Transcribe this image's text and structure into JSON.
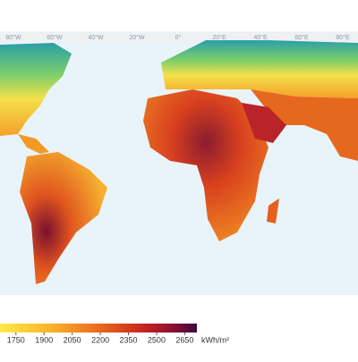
{
  "map": {
    "longitude_labels": [
      "80°W",
      "60°W",
      "40°W",
      "20°W",
      "0°",
      "20°E",
      "40°E",
      "60°E",
      "80°E"
    ]
  },
  "legend": {
    "ticks": [
      1750,
      1900,
      2050,
      2200,
      2350,
      2500,
      2650
    ],
    "range": [
      1665,
      2715
    ],
    "unit": "kWh/m²"
  }
}
